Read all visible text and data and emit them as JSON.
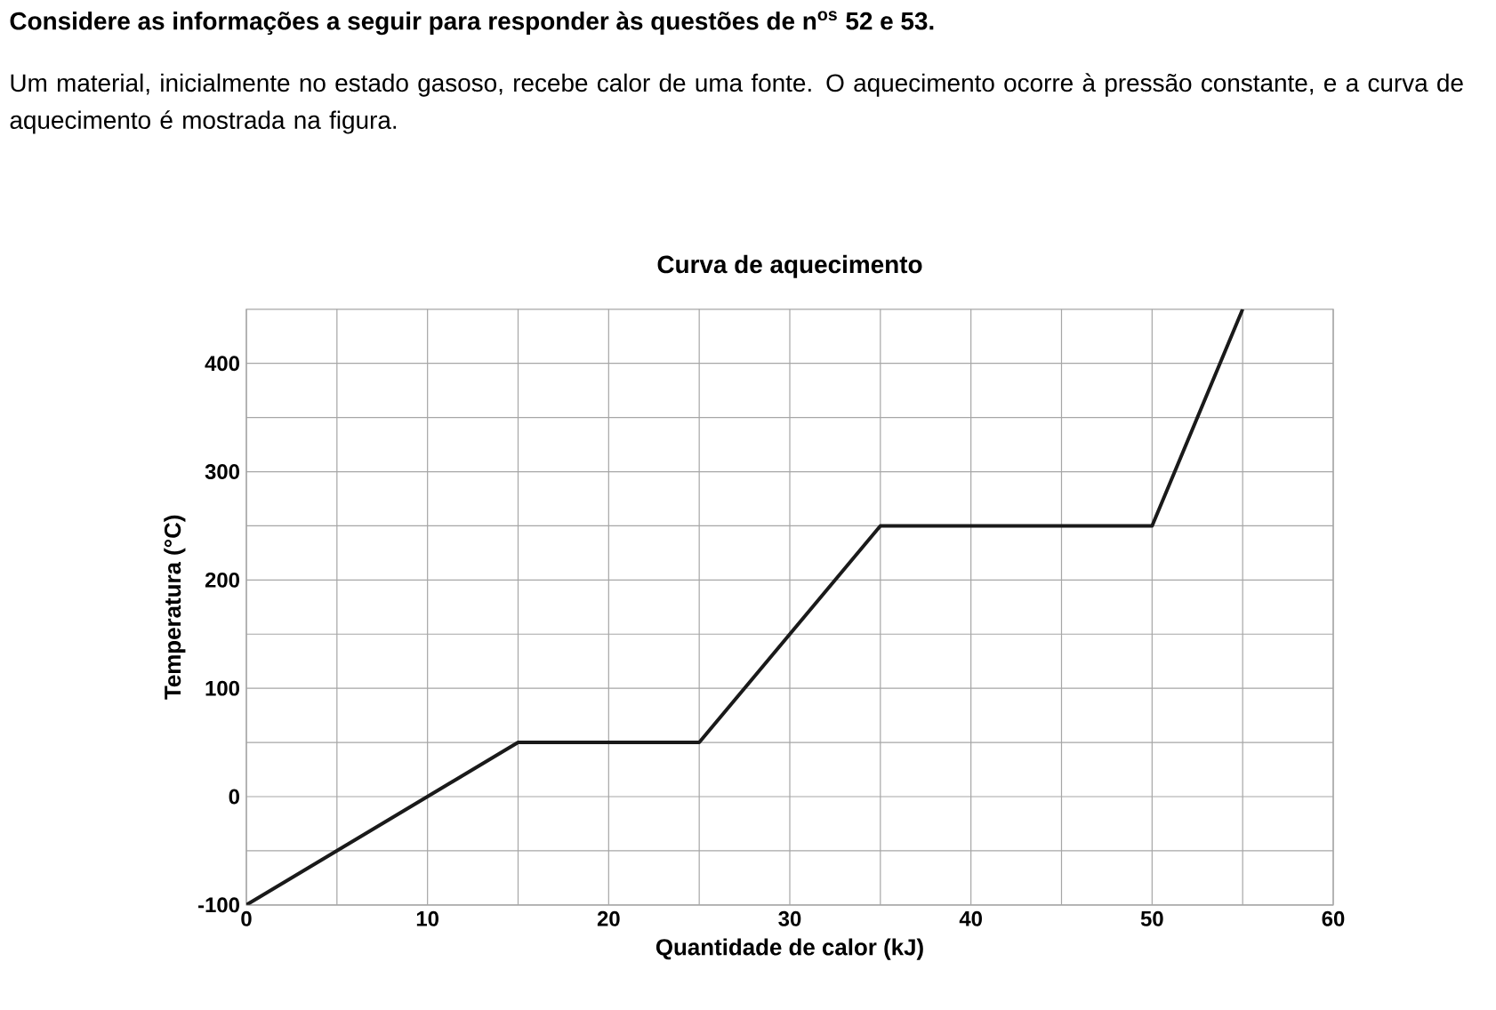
{
  "chart_data": {
    "type": "line",
    "title": "Curva de aquecimento",
    "xlabel": "Quantidade de calor (kJ)",
    "ylabel": "Temperatura (°C)",
    "annotations": [
      "**Considere as informações a seguir para responder às questões de n$^{os}$ 52 e 53.**",
      "Um material, inicialmente no estado gasoso, recebe calor de uma fonte. O aquecimento ocorre à pressão constante, e a curva de aquecimento é mostrada na figura."
    ],
    "x": [
      0,
      15,
      25,
      35,
      50,
      55
    ],
    "series": [
      {
        "color": "#1a1a1a",
        "values": [
          -100,
          50,
          50,
          250,
          250,
          450
        ]
      }
    ],
    "xlim": [
      0,
      60
    ],
    "ylim": [
      -100,
      450
    ],
    "xticks": [
      0,
      {
        "value": 5,
        "label": null
      },
      10,
      {
        "value": 15,
        "label": null
      },
      20,
      {
        "value": 25,
        "label": null
      },
      30,
      {
        "value": 35,
        "label": null
      },
      40,
      {
        "value": 45,
        "label": null
      },
      50,
      {
        "value": 55,
        "label": null
      },
      60
    ],
    "yticks": [
      -100,
      {
        "value": -50,
        "label": null
      },
      0,
      {
        "value": 50,
        "label": null
      },
      100,
      {
        "value": 150,
        "label": null
      },
      200,
      {
        "value": 250,
        "label": null
      },
      300,
      {
        "value": 350,
        "label": null
      },
      400
    ],
    "grid": true,
    "marker": "none",
    "line_style": "solid"
  }
}
